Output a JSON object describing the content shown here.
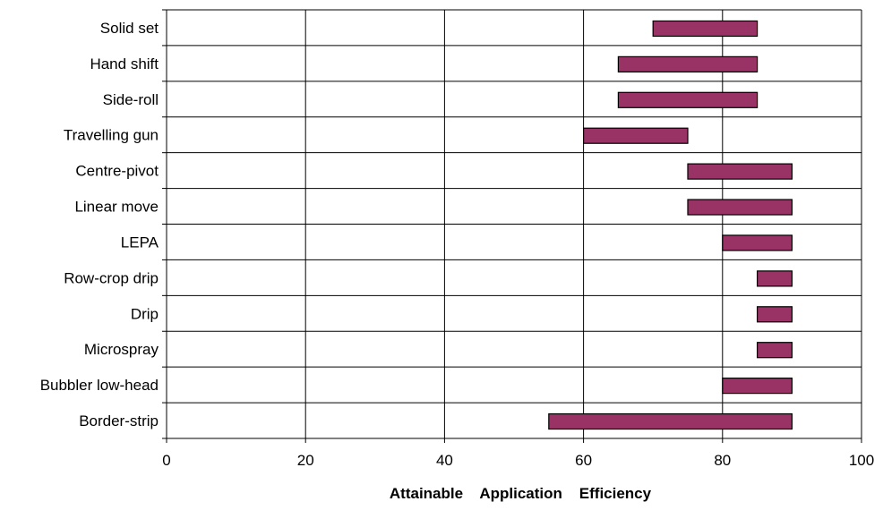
{
  "chart_data": {
    "type": "bar",
    "orientation": "horizontal",
    "bar_style": "floating-range",
    "title": "",
    "xlabel": "Attainable    Application    Efficiency",
    "ylabel": "",
    "xlim": [
      0,
      100
    ],
    "xticks": [
      "0",
      "20",
      "40",
      "60",
      "80",
      "100"
    ],
    "grid": true,
    "bar_color": "#993366",
    "bar_edge_color": "#000000",
    "categories": [
      "Solid set",
      "Hand shift",
      "Side-roll",
      "Travelling gun",
      "Centre-pivot",
      "Linear move",
      "LEPA",
      "Row-crop drip",
      "Drip",
      "Microspray",
      "Bubbler low-head",
      "Border-strip"
    ],
    "ranges": [
      [
        70,
        85
      ],
      [
        65,
        85
      ],
      [
        65,
        85
      ],
      [
        60,
        75
      ],
      [
        75,
        90
      ],
      [
        75,
        90
      ],
      [
        80,
        90
      ],
      [
        85,
        90
      ],
      [
        85,
        90
      ],
      [
        85,
        90
      ],
      [
        80,
        90
      ],
      [
        55,
        90
      ]
    ]
  }
}
